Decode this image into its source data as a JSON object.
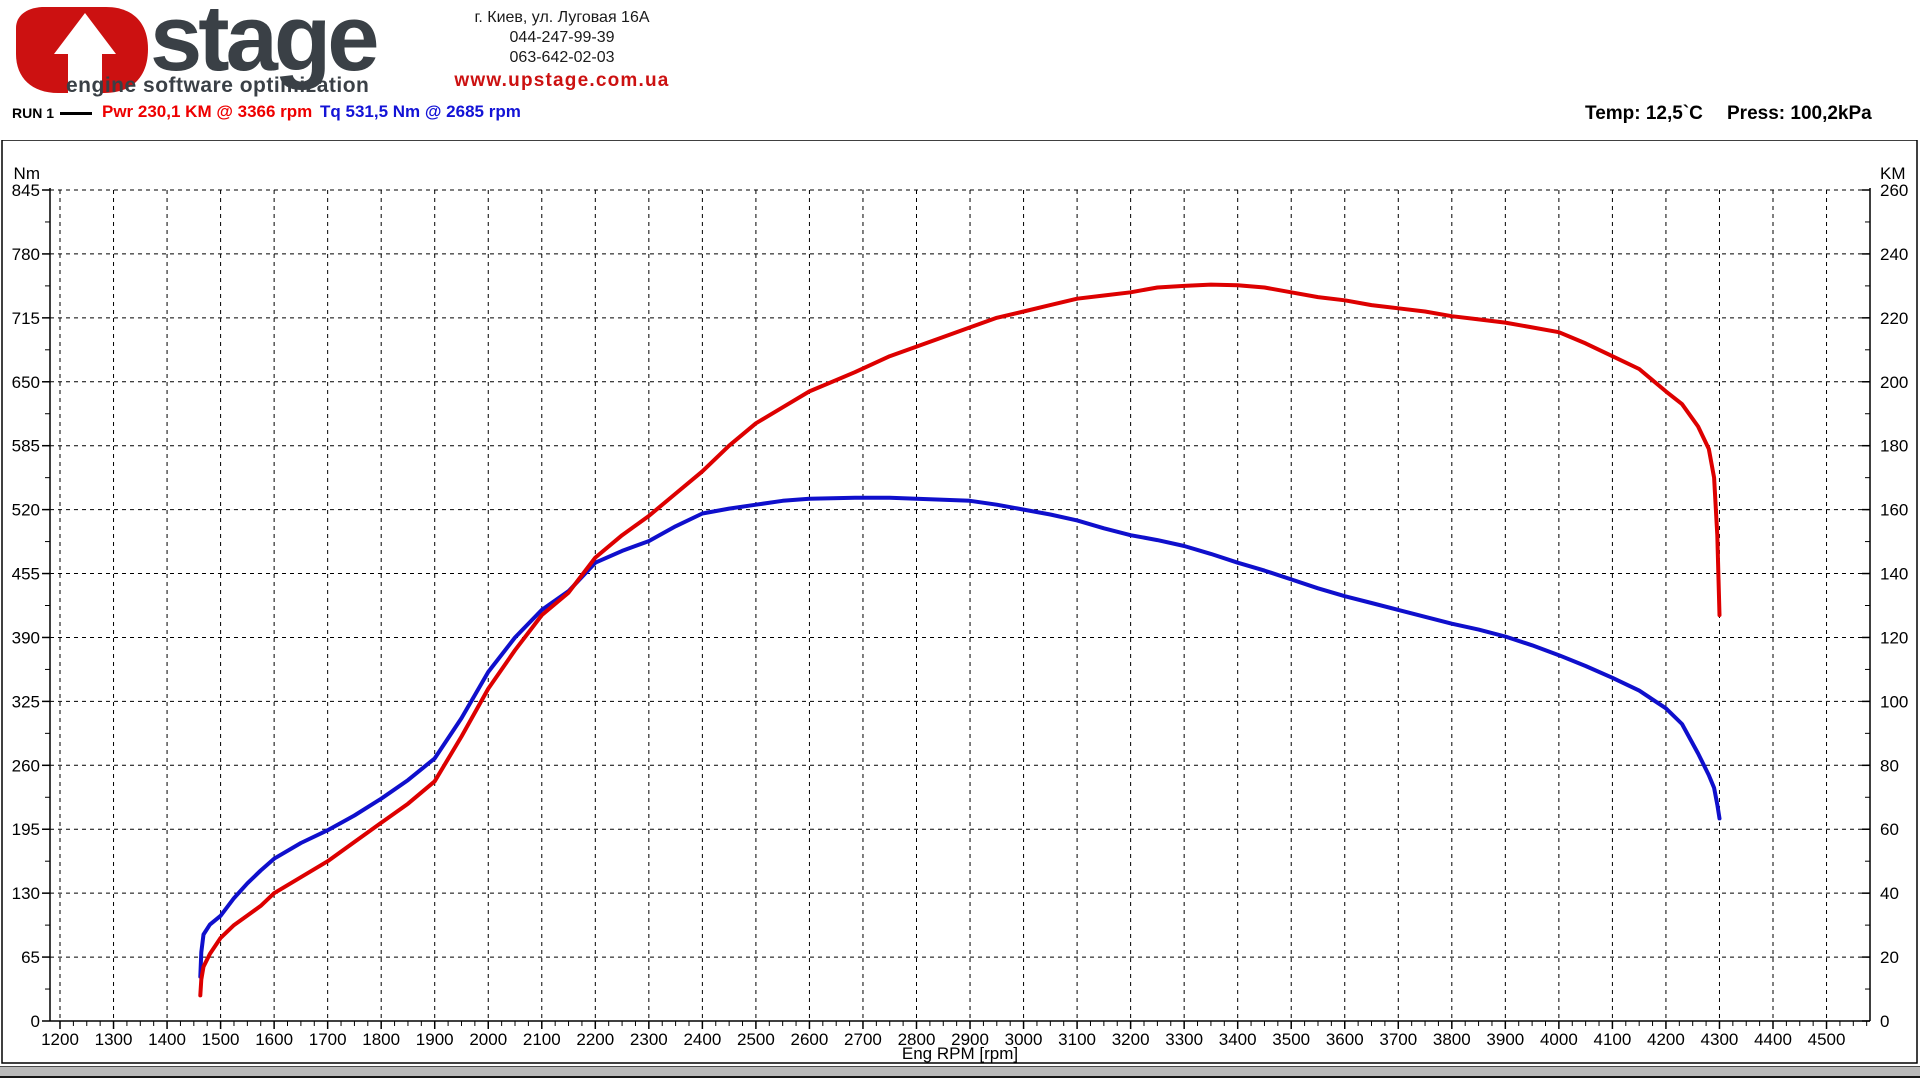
{
  "header": {
    "logo": {
      "word": "stage",
      "tagline": "engine software optimization",
      "mark": "red-u-arrow-logo"
    },
    "address": {
      "line1": "г. Киев, ул. Луговая 16А",
      "phone1": "044-247-99-39",
      "phone2": "063-642-02-03",
      "website": "www.upstage.com.ua"
    },
    "run": {
      "label": "RUN 1",
      "pwr": "Pwr  230,1 KM @ 3366 rpm",
      "tq": "Tq 531,5 Nm @ 2685 rpm"
    },
    "conditions": {
      "temp": "Temp: 12,5`C",
      "press": "Press: 100,2kPa"
    }
  },
  "colors": {
    "power_curve": "#dd0000",
    "torque_curve": "#0f0fcc",
    "pwr_text": "#ee0000",
    "tq_text": "#1313d6",
    "logo_red": "#cc1111",
    "logo_gray": "#3a4046",
    "website_red": "#cc1111"
  },
  "chart_data": {
    "type": "line",
    "title": "",
    "xlabel": "Eng RPM [rpm]",
    "grid": "dashed",
    "x_axis": {
      "label_min": 1200,
      "label_max": 4500,
      "major_step": 100,
      "minor_step": 25
    },
    "left_axis": {
      "label": "Nm",
      "min": 0,
      "max": 845,
      "major_step": 65
    },
    "right_axis": {
      "label": "KM",
      "min": 0,
      "max": 260,
      "major_step": 20
    },
    "peaks": {
      "power": {
        "value_km": 230.1,
        "rpm": 3366
      },
      "torque": {
        "value_nm": 531.5,
        "rpm": 2685
      }
    },
    "series": [
      {
        "name": "Torque",
        "axis": "left",
        "unit": "Nm",
        "color": "#0f0fcc",
        "points": [
          [
            1462,
            45
          ],
          [
            1464,
            70
          ],
          [
            1468,
            88
          ],
          [
            1480,
            98
          ],
          [
            1500,
            107
          ],
          [
            1525,
            125
          ],
          [
            1550,
            140
          ],
          [
            1575,
            153
          ],
          [
            1600,
            165
          ],
          [
            1650,
            181
          ],
          [
            1700,
            194
          ],
          [
            1750,
            209
          ],
          [
            1800,
            226
          ],
          [
            1850,
            245
          ],
          [
            1900,
            267
          ],
          [
            1950,
            308
          ],
          [
            2000,
            355
          ],
          [
            2050,
            390
          ],
          [
            2100,
            418
          ],
          [
            2150,
            437
          ],
          [
            2200,
            466
          ],
          [
            2250,
            478
          ],
          [
            2300,
            488
          ],
          [
            2350,
            503
          ],
          [
            2400,
            516
          ],
          [
            2450,
            521
          ],
          [
            2500,
            525
          ],
          [
            2550,
            529
          ],
          [
            2600,
            531
          ],
          [
            2685,
            532
          ],
          [
            2750,
            532
          ],
          [
            2800,
            531
          ],
          [
            2850,
            530
          ],
          [
            2900,
            529
          ],
          [
            2950,
            525
          ],
          [
            3000,
            520
          ],
          [
            3050,
            515
          ],
          [
            3100,
            509
          ],
          [
            3150,
            501
          ],
          [
            3200,
            494
          ],
          [
            3250,
            489
          ],
          [
            3300,
            483
          ],
          [
            3350,
            475
          ],
          [
            3400,
            466
          ],
          [
            3450,
            458
          ],
          [
            3500,
            449
          ],
          [
            3550,
            440
          ],
          [
            3600,
            432
          ],
          [
            3650,
            425
          ],
          [
            3700,
            418
          ],
          [
            3750,
            411
          ],
          [
            3800,
            404
          ],
          [
            3850,
            398
          ],
          [
            3900,
            391
          ],
          [
            3950,
            382
          ],
          [
            4000,
            372
          ],
          [
            4050,
            361
          ],
          [
            4100,
            349
          ],
          [
            4150,
            336
          ],
          [
            4200,
            318
          ],
          [
            4230,
            302
          ],
          [
            4260,
            272
          ],
          [
            4280,
            250
          ],
          [
            4290,
            237
          ],
          [
            4296,
            220
          ],
          [
            4300,
            206
          ]
        ]
      },
      {
        "name": "Power",
        "axis": "right",
        "unit": "KM",
        "color": "#dd0000",
        "points": [
          [
            1462,
            8
          ],
          [
            1464,
            13
          ],
          [
            1468,
            17
          ],
          [
            1480,
            21
          ],
          [
            1500,
            26
          ],
          [
            1525,
            30
          ],
          [
            1550,
            33
          ],
          [
            1575,
            36
          ],
          [
            1600,
            40
          ],
          [
            1650,
            45
          ],
          [
            1700,
            50
          ],
          [
            1750,
            56
          ],
          [
            1800,
            62
          ],
          [
            1850,
            68
          ],
          [
            1900,
            75
          ],
          [
            1950,
            89
          ],
          [
            2000,
            104
          ],
          [
            2050,
            116
          ],
          [
            2100,
            127
          ],
          [
            2150,
            134
          ],
          [
            2200,
            145
          ],
          [
            2250,
            152
          ],
          [
            2300,
            158
          ],
          [
            2350,
            165
          ],
          [
            2400,
            172
          ],
          [
            2450,
            180
          ],
          [
            2500,
            187
          ],
          [
            2550,
            192
          ],
          [
            2600,
            197
          ],
          [
            2685,
            203
          ],
          [
            2750,
            208
          ],
          [
            2800,
            211
          ],
          [
            2850,
            214
          ],
          [
            2900,
            217
          ],
          [
            2950,
            220
          ],
          [
            3000,
            222
          ],
          [
            3050,
            224
          ],
          [
            3100,
            226
          ],
          [
            3150,
            227
          ],
          [
            3200,
            228
          ],
          [
            3250,
            229.5
          ],
          [
            3300,
            230
          ],
          [
            3350,
            230.4
          ],
          [
            3400,
            230.2
          ],
          [
            3450,
            229.5
          ],
          [
            3500,
            228
          ],
          [
            3550,
            226.5
          ],
          [
            3600,
            225.5
          ],
          [
            3650,
            224
          ],
          [
            3700,
            223
          ],
          [
            3750,
            222
          ],
          [
            3800,
            220.5
          ],
          [
            3850,
            219.5
          ],
          [
            3900,
            218.5
          ],
          [
            3950,
            217
          ],
          [
            4000,
            215.5
          ],
          [
            4050,
            212
          ],
          [
            4100,
            208
          ],
          [
            4150,
            204
          ],
          [
            4200,
            197
          ],
          [
            4230,
            193
          ],
          [
            4260,
            186
          ],
          [
            4280,
            179
          ],
          [
            4290,
            170
          ],
          [
            4296,
            152
          ],
          [
            4300,
            127
          ]
        ]
      }
    ]
  }
}
